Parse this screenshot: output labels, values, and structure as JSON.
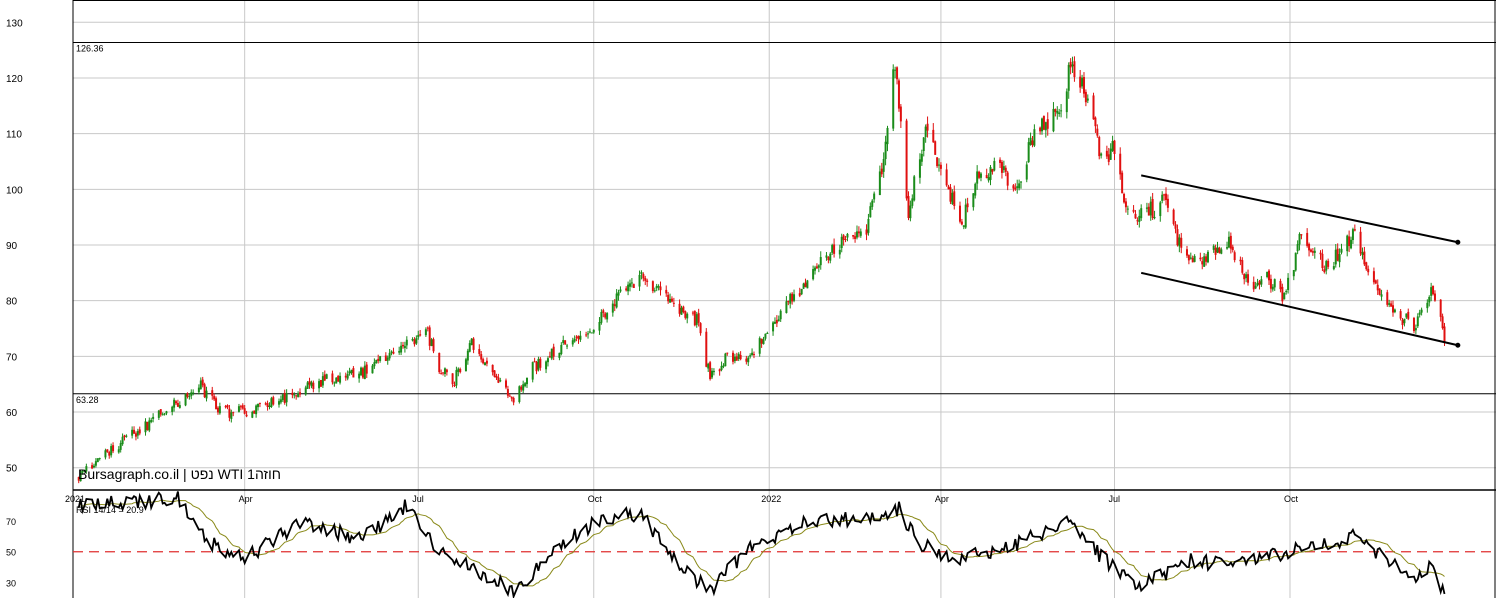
{
  "chart_data": {
    "type": "candlestick",
    "watermark": "Bursagraph.co.il | נפט WTI 1חוזה",
    "colors": {
      "up": "#1a8c1a",
      "down": "#e01010",
      "grid": "#c8c8c8",
      "rsi": "#000000",
      "rsi_ma": "#8a8a1a",
      "rsi_mid": "#e03030"
    },
    "price": {
      "ylim": [
        46,
        134
      ],
      "yticks": [
        "50",
        "60",
        "70",
        "80",
        "90",
        "100",
        "110",
        "120",
        "130"
      ],
      "hlines": [
        {
          "value": 126.36,
          "label": "126.36"
        },
        {
          "value": 63.28,
          "label": "63.28"
        }
      ],
      "channel": {
        "upper": [
          [
            "2022-07-15",
            102.5
          ],
          [
            "2022-12-28",
            90.5
          ]
        ],
        "lower": [
          [
            "2022-07-15",
            85.0
          ],
          [
            "2022-12-28",
            72.0
          ]
        ]
      },
      "anchors": [
        [
          "2021-01-04",
          48.5
        ],
        [
          "2021-01-20",
          53
        ],
        [
          "2021-02-10",
          58
        ],
        [
          "2021-02-25",
          62
        ],
        [
          "2021-03-08",
          65
        ],
        [
          "2021-03-20",
          60
        ],
        [
          "2021-04-01",
          60
        ],
        [
          "2021-04-20",
          62
        ],
        [
          "2021-05-05",
          65
        ],
        [
          "2021-05-18",
          66
        ],
        [
          "2021-06-01",
          67
        ],
        [
          "2021-06-15",
          70
        ],
        [
          "2021-06-30",
          73
        ],
        [
          "2021-07-06",
          74
        ],
        [
          "2021-07-12",
          68
        ],
        [
          "2021-07-19",
          65
        ],
        [
          "2021-07-29",
          73
        ],
        [
          "2021-08-06",
          68
        ],
        [
          "2021-08-20",
          62
        ],
        [
          "2021-08-30",
          68
        ],
        [
          "2021-09-15",
          72
        ],
        [
          "2021-09-30",
          75
        ],
        [
          "2021-10-10",
          79
        ],
        [
          "2021-10-25",
          84
        ],
        [
          "2021-11-05",
          81
        ],
        [
          "2021-11-15",
          79
        ],
        [
          "2021-11-25",
          76
        ],
        [
          "2021-12-01",
          66
        ],
        [
          "2021-12-10",
          70
        ],
        [
          "2021-12-20",
          69
        ],
        [
          "2022-01-05",
          77
        ],
        [
          "2022-01-20",
          83
        ],
        [
          "2022-02-05",
          90
        ],
        [
          "2022-02-20",
          92
        ],
        [
          "2022-03-01",
          103
        ],
        [
          "2022-03-08",
          123
        ],
        [
          "2022-03-15",
          95
        ],
        [
          "2022-03-24",
          112
        ],
        [
          "2022-04-05",
          100
        ],
        [
          "2022-04-12",
          94
        ],
        [
          "2022-04-20",
          103
        ],
        [
          "2022-05-01",
          104
        ],
        [
          "2022-05-10",
          100
        ],
        [
          "2022-05-20",
          110
        ],
        [
          "2022-06-01",
          113
        ],
        [
          "2022-06-08",
          122
        ],
        [
          "2022-06-14",
          120
        ],
        [
          "2022-06-24",
          105
        ],
        [
          "2022-07-01",
          108
        ],
        [
          "2022-07-06",
          98
        ],
        [
          "2022-07-14",
          95
        ],
        [
          "2022-07-29",
          98
        ],
        [
          "2022-08-05",
          89
        ],
        [
          "2022-08-15",
          87
        ],
        [
          "2022-08-30",
          90
        ],
        [
          "2022-09-10",
          83
        ],
        [
          "2022-09-20",
          84
        ],
        [
          "2022-09-28",
          80
        ],
        [
          "2022-10-07",
          92
        ],
        [
          "2022-10-20",
          86
        ],
        [
          "2022-11-04",
          92
        ],
        [
          "2022-11-10",
          86
        ],
        [
          "2022-11-25",
          78
        ],
        [
          "2022-12-06",
          75
        ],
        [
          "2022-12-14",
          83
        ],
        [
          "2022-12-21",
          73
        ]
      ]
    },
    "x_axis": {
      "start": "2021-01-01",
      "end": "2023-01-17",
      "labels": [
        {
          "date": "2021-01-01",
          "text": "2021"
        },
        {
          "date": "2021-04-01",
          "text": "Apr"
        },
        {
          "date": "2021-07-01",
          "text": "Jul"
        },
        {
          "date": "2021-10-01",
          "text": "Oct"
        },
        {
          "date": "2022-01-01",
          "text": "2022"
        },
        {
          "date": "2022-04-01",
          "text": "Apr"
        },
        {
          "date": "2022-07-01",
          "text": "Jul"
        },
        {
          "date": "2022-10-01",
          "text": "Oct"
        }
      ]
    },
    "rsi": {
      "label": "RSI 14/14 = 20.9",
      "ylim": [
        20,
        90
      ],
      "yticks": [
        "30",
        "50",
        "70"
      ],
      "midline": 50,
      "anchors": [
        [
          "2021-01-04",
          80
        ],
        [
          "2021-02-01",
          82
        ],
        [
          "2021-02-25",
          85
        ],
        [
          "2021-03-15",
          55
        ],
        [
          "2021-04-01",
          45
        ],
        [
          "2021-05-01",
          70
        ],
        [
          "2021-06-01",
          58
        ],
        [
          "2021-06-25",
          80
        ],
        [
          "2021-07-12",
          50
        ],
        [
          "2021-08-20",
          25
        ],
        [
          "2021-09-15",
          55
        ],
        [
          "2021-10-05",
          72
        ],
        [
          "2021-10-25",
          75
        ],
        [
          "2021-11-20",
          35
        ],
        [
          "2021-12-01",
          25
        ],
        [
          "2021-12-20",
          50
        ],
        [
          "2022-01-20",
          70
        ],
        [
          "2022-02-25",
          72
        ],
        [
          "2022-03-10",
          78
        ],
        [
          "2022-03-20",
          55
        ],
        [
          "2022-04-10",
          45
        ],
        [
          "2022-05-10",
          55
        ],
        [
          "2022-06-08",
          70
        ],
        [
          "2022-06-25",
          45
        ],
        [
          "2022-07-15",
          28
        ],
        [
          "2022-08-10",
          45
        ],
        [
          "2022-09-01",
          40
        ],
        [
          "2022-10-01",
          50
        ],
        [
          "2022-11-05",
          60
        ],
        [
          "2022-11-20",
          45
        ],
        [
          "2022-12-06",
          30
        ],
        [
          "2022-12-14",
          40
        ],
        [
          "2022-12-21",
          21
        ]
      ]
    }
  }
}
